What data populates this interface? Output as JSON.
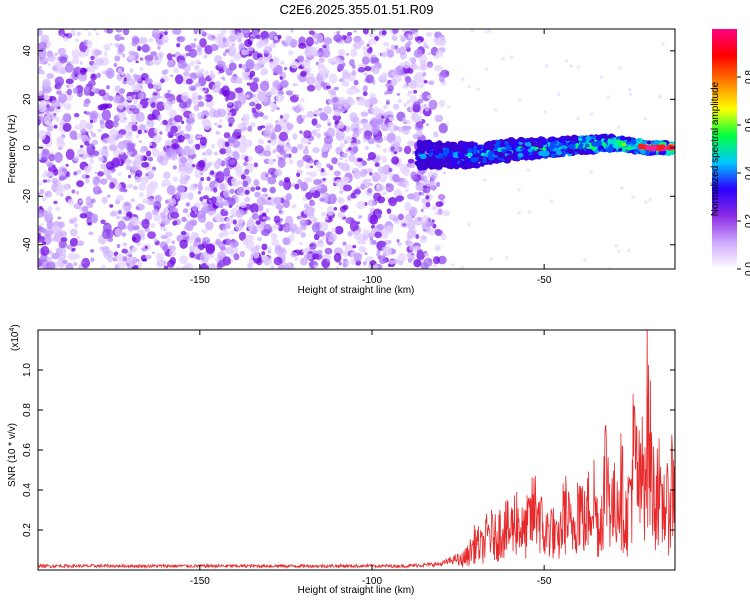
{
  "title": "C2E6.2025.355.01.51.R09",
  "colors": {
    "snr_line": "#e8292b",
    "scatter_purple": "#7a16e6",
    "background": "#ffffff"
  },
  "chart_data": [
    {
      "type": "heatmap",
      "title": "C2E6.2025.355.01.51.R09",
      "xlabel": "Height of straight line (km)",
      "ylabel": "Frequency (Hz)",
      "xlim": [
        -197,
        -12
      ],
      "ylim": [
        -50,
        49
      ],
      "xticks": [
        -150,
        -100,
        -50
      ],
      "xtick_labels": [
        "-150",
        "-100",
        "-50"
      ],
      "yticks": [
        40,
        20,
        0,
        -20,
        -40
      ],
      "ytick_labels": [
        "40",
        "20",
        "0",
        "-20",
        "-40"
      ],
      "noise_region_km": [
        -197,
        -85
      ],
      "signal_band_km": [
        -87,
        -12
      ],
      "signal_center_hz": [
        [
          -87,
          -3
        ],
        [
          -70,
          -3
        ],
        [
          -60,
          -1
        ],
        [
          -50,
          0
        ],
        [
          -40,
          1
        ],
        [
          -30,
          2
        ],
        [
          -20,
          0
        ],
        [
          -12,
          0
        ]
      ],
      "colorbar": {
        "label": "Normalized spectral amplitude",
        "min": 0.0,
        "max": 1.0,
        "ticks": [
          0.0,
          0.2,
          0.4,
          0.6,
          0.8
        ],
        "tick_labels": [
          "0.0",
          "0.2",
          "0.4",
          "0.6",
          "0.8"
        ],
        "colors": [
          "#ffffff",
          "#cfa8ff",
          "#8a2be2",
          "#2a00ff",
          "#00c8ff",
          "#00ff40",
          "#ffff00",
          "#ff8000",
          "#ff0000",
          "#ff0080"
        ]
      }
    },
    {
      "type": "line",
      "xlabel": "Height of straight line (km)",
      "ylabel": "SNR (10 * v/v)",
      "scale_label": "(x10",
      "scale_exponent": "4",
      "scale_close": ")",
      "xlim": [
        -197,
        -12
      ],
      "ylim": [
        0.0,
        1.2
      ],
      "xticks": [
        -150,
        -100,
        -50
      ],
      "xtick_labels": [
        "-150",
        "-100",
        "-50"
      ],
      "yticks": [
        0.2,
        0.4,
        0.6,
        0.8,
        1.0
      ],
      "ytick_labels": [
        "0.2",
        "0.4",
        "0.6",
        "0.8",
        "1.0"
      ],
      "series": [
        {
          "name": "SNR",
          "x": [
            -197,
            -180,
            -160,
            -140,
            -120,
            -100,
            -90,
            -80,
            -75,
            -72,
            -70,
            -68,
            -66,
            -64,
            -62,
            -60,
            -58,
            -56,
            -54,
            -52,
            -50,
            -48,
            -46,
            -44,
            -42,
            -40,
            -38,
            -36,
            -34,
            -32,
            -30,
            -28,
            -26,
            -24,
            -22,
            -20,
            -19,
            -18,
            -17,
            -16,
            -15,
            -14,
            -13,
            -12
          ],
          "y": [
            0.02,
            0.02,
            0.02,
            0.02,
            0.02,
            0.02,
            0.02,
            0.03,
            0.06,
            0.12,
            0.22,
            0.18,
            0.3,
            0.25,
            0.35,
            0.3,
            0.42,
            0.28,
            0.4,
            0.52,
            0.26,
            0.35,
            0.2,
            0.48,
            0.3,
            0.55,
            0.35,
            0.65,
            0.3,
            0.82,
            0.45,
            0.7,
            0.38,
            0.9,
            0.6,
            1.18,
            0.85,
            0.55,
            0.75,
            0.4,
            0.6,
            0.45,
            0.7,
            0.6
          ]
        }
      ]
    }
  ]
}
